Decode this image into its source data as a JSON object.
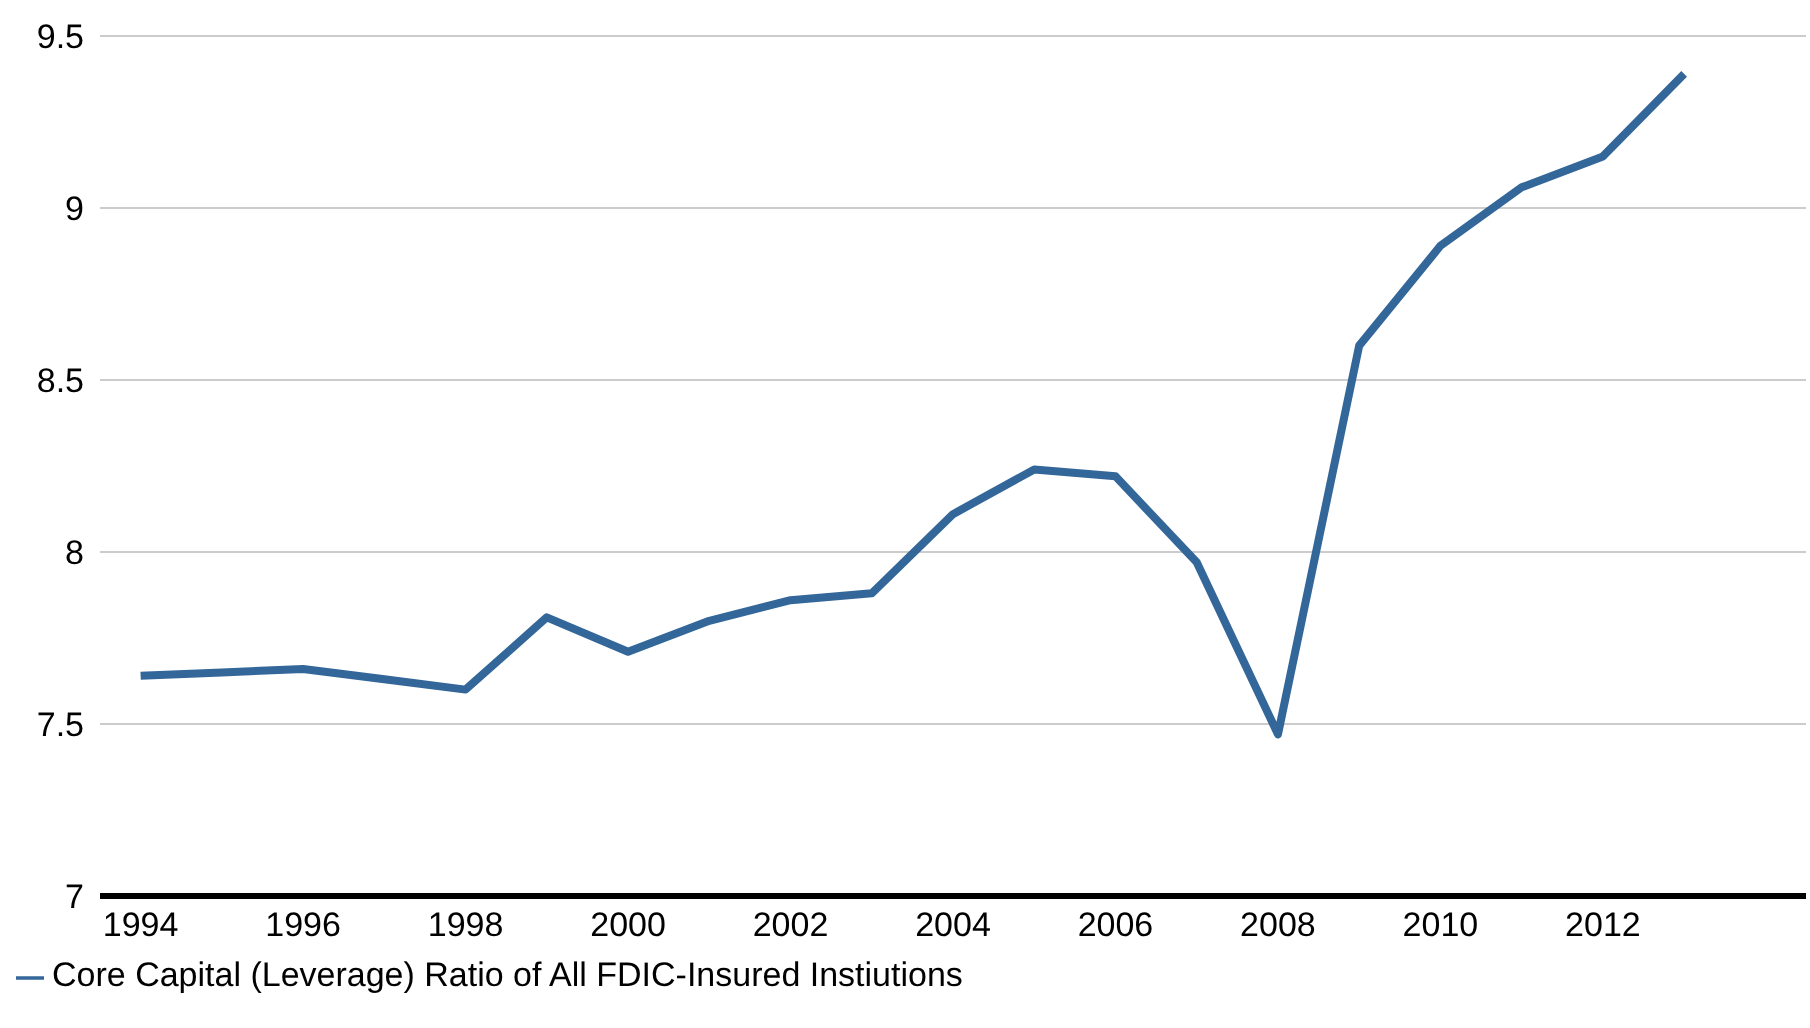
{
  "chart_data": {
    "type": "line",
    "x": [
      1994,
      1995,
      1996,
      1997,
      1998,
      1999,
      2000,
      2001,
      2002,
      2003,
      2004,
      2005,
      2006,
      2007,
      2008,
      2009,
      2010,
      2011,
      2012,
      2013
    ],
    "series": [
      {
        "name": "Core Capital (Leverage) Ratio of All FDIC-Insured Instiutions",
        "color": "#336699",
        "values": [
          7.64,
          7.65,
          7.66,
          7.63,
          7.6,
          7.81,
          7.71,
          7.8,
          7.86,
          7.88,
          8.11,
          8.24,
          8.22,
          7.97,
          7.47,
          8.6,
          8.89,
          9.06,
          9.15,
          9.39
        ]
      }
    ],
    "xlim": [
      1993.5,
      2014.5
    ],
    "xticks": [
      1994,
      1996,
      1998,
      2000,
      2002,
      2004,
      2006,
      2008,
      2010,
      2012
    ],
    "ylim": [
      7,
      9.5
    ],
    "yticks": [
      7,
      7.5,
      8,
      8.5,
      9,
      9.5
    ],
    "grid": "y",
    "legend": "bottom left",
    "marker": "none",
    "line_style": "solid"
  }
}
